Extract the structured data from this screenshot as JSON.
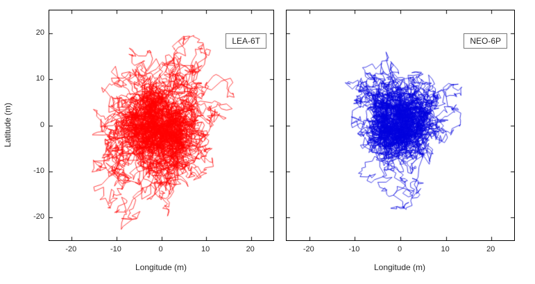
{
  "figure": {
    "background": "#ffffff",
    "axis_color": "#000000",
    "text_color": "#262626",
    "title": ""
  },
  "chart_data": [
    {
      "type": "line",
      "title": "",
      "label": "LEA-6T",
      "series": [
        {
          "name": "LEA-6T",
          "color": "#ff0000"
        }
      ],
      "color": "#ff0000",
      "xlabel": "Longitude (m)",
      "ylabel": "Latitude (m)",
      "xlim": [
        -25,
        25
      ],
      "ylim": [
        -25,
        25
      ],
      "xticks": [
        -20,
        -10,
        0,
        10,
        20
      ],
      "yticks": [
        20,
        10,
        0,
        -10,
        -20
      ],
      "show_ytick_labels": true,
      "grid": false,
      "legend_position": "top-right",
      "description": "Connected GPS horizontal position wander trace of LEA-6T receiver; dense random-walk core within about ±8 m of origin, star-like excursions reaching x ≈ -15 to +17 m and y ≈ -23 to +20 m",
      "extent": {
        "x_min": -15.5,
        "x_max": 17,
        "y_min": -23,
        "y_max": 20
      },
      "walk": {
        "seed": 42,
        "points": 6500,
        "cx": -1.0,
        "cy": -0.5,
        "core_x": 4.2,
        "core_y": 5.2,
        "noise": 0.85,
        "pull": 0.06,
        "exc_prob": 0.16,
        "exc_min": 9,
        "exc_range": 13,
        "ax": 0.85,
        "ay": 1.05,
        "xmin": -15.5,
        "xmax": 17,
        "ymin": -23,
        "ymax": 20
      }
    },
    {
      "type": "line",
      "title": "",
      "label": "NEO-6P",
      "series": [
        {
          "name": "NEO-6P",
          "color": "#0000dd"
        }
      ],
      "color": "#0000dd",
      "xlabel": "Longitude (m)",
      "ylabel": "",
      "xlim": [
        -25,
        25
      ],
      "ylim": [
        -25,
        25
      ],
      "xticks": [
        -20,
        -10,
        0,
        10,
        20
      ],
      "yticks": [
        20,
        10,
        0,
        -10,
        -20
      ],
      "show_ytick_labels": false,
      "grid": false,
      "legend_position": "top-right",
      "description": "Connected GPS horizontal position wander trace of NEO-6P receiver; dense random-walk core within about ±7 m of origin, excursions reaching x ≈ -13 to +13 m and y ≈ -23 to +21 m",
      "extent": {
        "x_min": -13,
        "x_max": 13.5,
        "y_min": -23,
        "y_max": 20.5
      },
      "walk": {
        "seed": 7,
        "points": 5200,
        "cx": -0.5,
        "cy": 0.5,
        "core_x": 3.8,
        "core_y": 5.0,
        "noise": 0.8,
        "pull": 0.06,
        "exc_prob": 0.16,
        "exc_min": 8,
        "exc_range": 14,
        "ax": 0.7,
        "ay": 1.05,
        "xmin": -13,
        "xmax": 13.5,
        "ymin": -23,
        "ymax": 20.5
      }
    }
  ]
}
